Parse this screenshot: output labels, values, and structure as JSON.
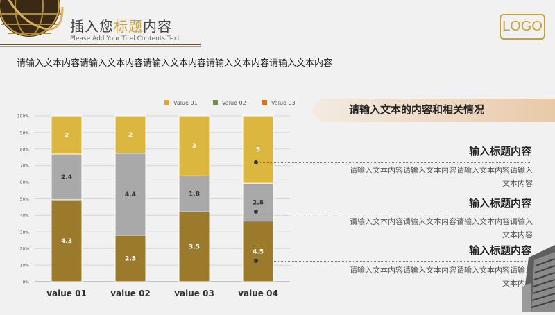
{
  "header": {
    "title_prefix": "插入您",
    "title_highlight": "标题",
    "title_suffix": "内容",
    "subtitle": "Please Add Your Titel Contents Text",
    "logo": "LOGO"
  },
  "intro_text": "请输入文本内容请输入文本内容请输入文本内容请输入文本内容请输入文本内容",
  "banner_text": "请输入文本的内容和相关情况",
  "points": [
    {
      "title": "输入标题内容",
      "body_line1": "请输入文本内容请输入文本内容请输入文本内容请输入",
      "body_line2": "文本内容"
    },
    {
      "title": "输入标题内容",
      "body_line1": "请输入文本内容请输入文本内容请输入文本内容请输入",
      "body_line2": "文本内容"
    },
    {
      "title": "输入标题内容",
      "body_line1": "请输入文本内容请输入文本内容请输入文本内容请输入",
      "body_line2": "文本内容"
    }
  ],
  "colors": {
    "accent": "#c9a035",
    "bar_bottom": "#9c7a2c",
    "bar_middle": "#a9a9a9",
    "bar_top": "#dbb740",
    "legend_01": "#e0a826",
    "legend_02": "#6f8f4c",
    "legend_03": "#d5731f"
  },
  "chart_data": {
    "type": "bar",
    "stacked": "percent",
    "categories": [
      "value 01",
      "value 02",
      "value 03",
      "value 04"
    ],
    "series": [
      {
        "name": "Value 01",
        "values": [
          4.3,
          2.5,
          3.5,
          4.5
        ]
      },
      {
        "name": "Value 02",
        "values": [
          2.4,
          4.4,
          1.8,
          2.8
        ]
      },
      {
        "name": "Value 03",
        "values": [
          2,
          2,
          3,
          5
        ]
      }
    ],
    "data_labels": [
      [
        "4.3",
        "2.5",
        "3.5",
        "4.5"
      ],
      [
        "2.4",
        "4.4",
        "1.8",
        "2.8"
      ],
      [
        "2",
        "2",
        "3",
        "5"
      ]
    ],
    "ytick_labels": [
      "0%",
      "10%",
      "20%",
      "30%",
      "40%",
      "50%",
      "60%",
      "70%",
      "80%",
      "90%",
      "100%"
    ],
    "ylim": [
      0,
      100
    ],
    "grid": true,
    "legend_position": "top"
  }
}
